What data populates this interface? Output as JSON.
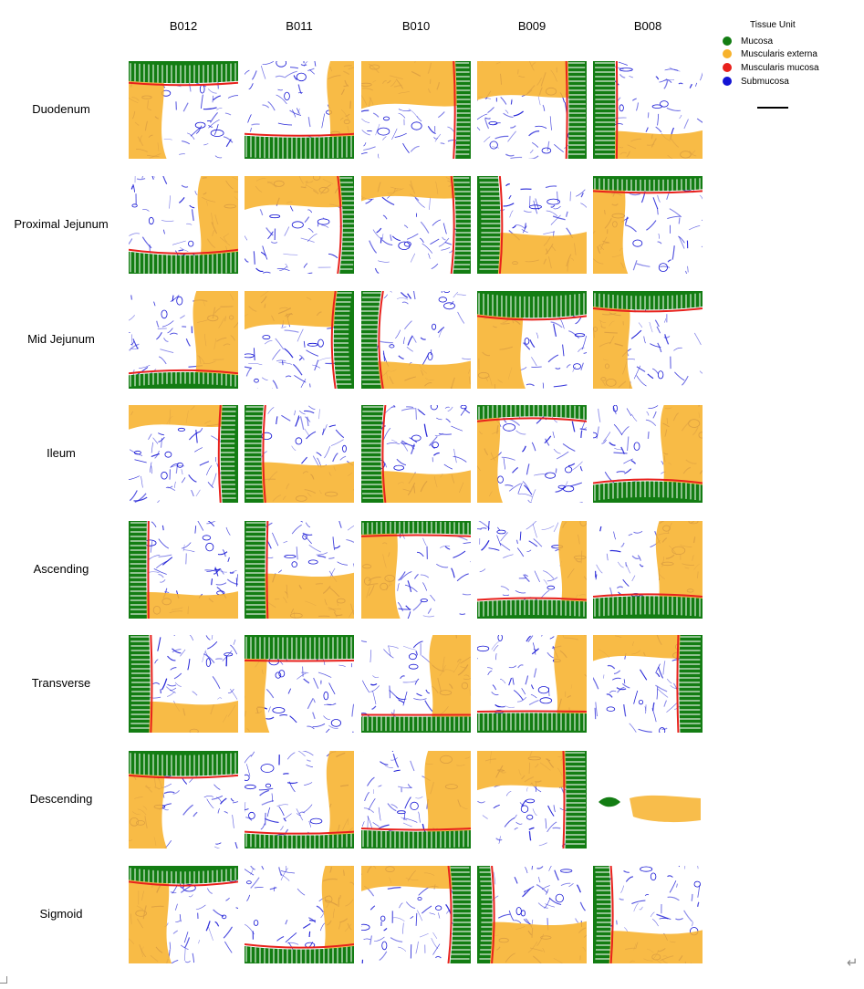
{
  "figure": {
    "columns": [
      "B012",
      "B011",
      "B010",
      "B009",
      "B008"
    ],
    "rows": [
      "Duodenum",
      "Proximal Jejunum",
      "Mid Jejunum",
      "Ileum",
      "Ascending",
      "Transverse",
      "Descending",
      "Sigmoid"
    ],
    "legend": {
      "title": "Tissue Unit",
      "items": [
        {
          "label": "Mucosa",
          "color": "#137d13"
        },
        {
          "label": "Muscularis externa",
          "color": "#f7b22c"
        },
        {
          "label": "Muscularis mucosa",
          "color": "#e8211c"
        },
        {
          "label": "Submucosa",
          "color": "#1414d4"
        }
      ]
    },
    "empty_tiles": [
      "Descending|B008"
    ],
    "glyphs": {
      "return": "↵"
    }
  }
}
